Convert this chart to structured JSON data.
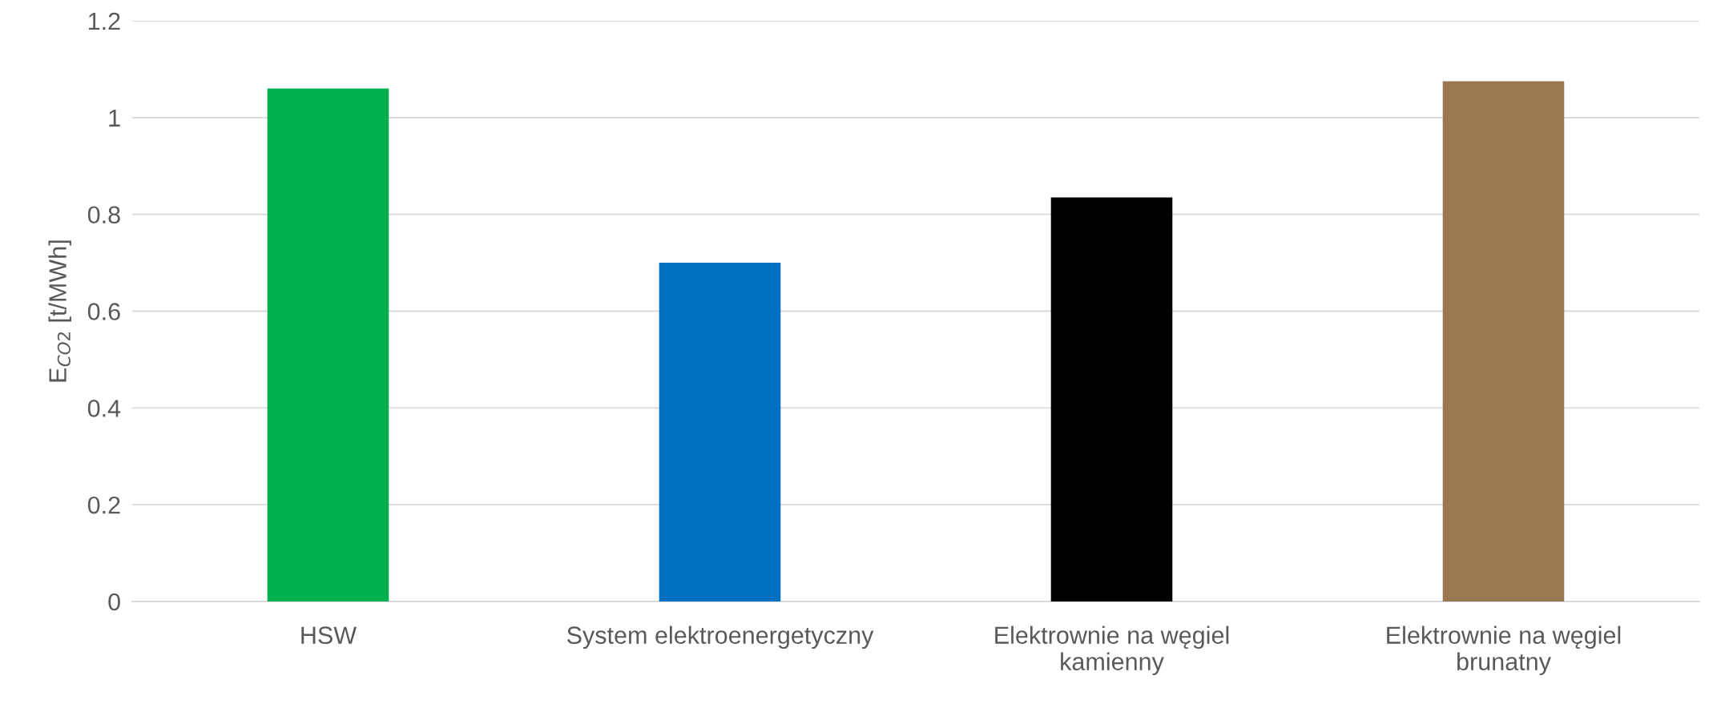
{
  "chart_data": {
    "type": "bar",
    "categories": [
      "HSW",
      "System elektroenergetyczny",
      "Elektrownie na węgiel\nkamienny",
      "Elektrownie na węgiel\nbrunatny"
    ],
    "values": [
      1.06,
      0.7,
      0.835,
      1.075
    ],
    "colors": [
      "#00b050",
      "#0070c0",
      "#000000",
      "#997750"
    ],
    "ylabel": "E$_{CO2}$ [t/MWh]",
    "ylim": [
      0,
      1.2
    ],
    "yticks": [
      0,
      0.2,
      0.4,
      0.6,
      0.8,
      1,
      1.2
    ],
    "grid": "y"
  }
}
